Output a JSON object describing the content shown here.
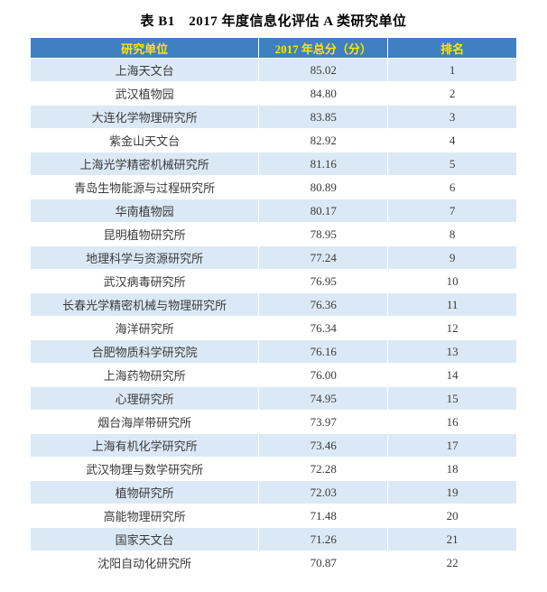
{
  "title": "表 B1　2017 年度信息化评估 A 类研究单位",
  "table": {
    "columns": [
      "研究单位",
      "2017 年总分（分）",
      "排名"
    ],
    "rows": [
      {
        "unit": "上海天文台",
        "score": "85.02",
        "rank": "1"
      },
      {
        "unit": "武汉植物园",
        "score": "84.80",
        "rank": "2"
      },
      {
        "unit": "大连化学物理研究所",
        "score": "83.85",
        "rank": "3"
      },
      {
        "unit": "紫金山天文台",
        "score": "82.92",
        "rank": "4"
      },
      {
        "unit": "上海光学精密机械研究所",
        "score": "81.16",
        "rank": "5"
      },
      {
        "unit": "青岛生物能源与过程研究所",
        "score": "80.89",
        "rank": "6"
      },
      {
        "unit": "华南植物园",
        "score": "80.17",
        "rank": "7"
      },
      {
        "unit": "昆明植物研究所",
        "score": "78.95",
        "rank": "8"
      },
      {
        "unit": "地理科学与资源研究所",
        "score": "77.24",
        "rank": "9"
      },
      {
        "unit": "武汉病毒研究所",
        "score": "76.95",
        "rank": "10"
      },
      {
        "unit": "长春光学精密机械与物理研究所",
        "score": "76.36",
        "rank": "11"
      },
      {
        "unit": "海洋研究所",
        "score": "76.34",
        "rank": "12"
      },
      {
        "unit": "合肥物质科学研究院",
        "score": "76.16",
        "rank": "13"
      },
      {
        "unit": "上海药物研究所",
        "score": "76.00",
        "rank": "14"
      },
      {
        "unit": "心理研究所",
        "score": "74.95",
        "rank": "15"
      },
      {
        "unit": "烟台海岸带研究所",
        "score": "73.97",
        "rank": "16"
      },
      {
        "unit": "上海有机化学研究所",
        "score": "73.46",
        "rank": "17"
      },
      {
        "unit": "武汉物理与数学研究所",
        "score": "72.28",
        "rank": "18"
      },
      {
        "unit": "植物研究所",
        "score": "72.03",
        "rank": "19"
      },
      {
        "unit": "高能物理研究所",
        "score": "71.48",
        "rank": "20"
      },
      {
        "unit": "国家天文台",
        "score": "71.26",
        "rank": "21"
      },
      {
        "unit": "沈阳自动化研究所",
        "score": "70.87",
        "rank": "22"
      }
    ]
  },
  "colors": {
    "header_bg": "#3e80c1",
    "header_text": "#ffe500",
    "row_alt_bg": "#dbe9f6",
    "row_bg": "#ffffff",
    "text_color": "#3a3a3a"
  }
}
